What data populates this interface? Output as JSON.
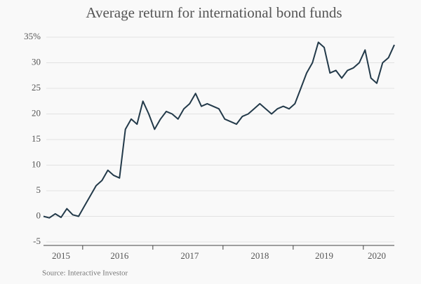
{
  "chart_data": {
    "type": "line",
    "title": "Average return for international bond funds",
    "source": "Source: Interactive Investor",
    "categories": [
      null,
      null,
      null,
      "2015",
      null,
      null,
      null,
      null,
      null,
      null,
      null,
      null,
      null,
      "2016",
      null,
      null,
      null,
      null,
      null,
      null,
      null,
      null,
      null,
      null,
      null,
      "2017",
      null,
      null,
      null,
      null,
      null,
      null,
      null,
      null,
      null,
      null,
      null,
      "2018",
      null,
      null,
      null,
      null,
      null,
      null,
      null,
      null,
      null,
      null,
      "2019",
      null,
      null,
      null,
      null,
      null,
      null,
      null,
      null,
      "2020",
      null,
      null,
      null
    ],
    "series": [
      {
        "name": "Average return",
        "color": "#233a4a",
        "values": [
          0,
          -0.3,
          0.5,
          -0.2,
          1.5,
          0.3,
          0,
          2,
          4,
          6,
          7,
          9,
          8,
          7.5,
          17,
          19,
          18,
          22.5,
          20,
          17,
          19,
          20.5,
          20,
          19,
          21,
          22,
          24,
          21.5,
          22,
          21.5,
          21,
          19,
          18.5,
          18,
          19.5,
          20,
          21,
          22,
          21,
          20,
          21,
          21.5,
          21,
          22,
          25,
          28,
          30,
          34,
          33,
          28,
          28.5,
          27,
          28.5,
          29,
          30,
          32.5,
          27,
          26,
          30,
          31,
          33.5
        ]
      }
    ],
    "ylim": [
      -5,
      35
    ],
    "yticks": [
      {
        "value": 35,
        "label": "35%"
      },
      30,
      25,
      20,
      15,
      10,
      5,
      0,
      -5
    ],
    "grid": true
  }
}
